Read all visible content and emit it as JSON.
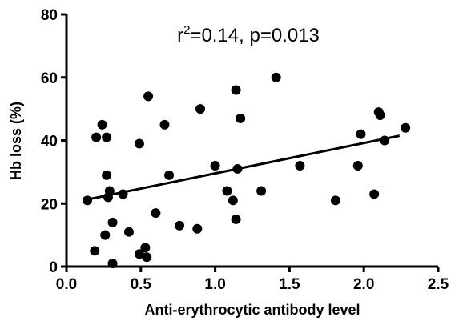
{
  "chart_data": {
    "type": "scatter",
    "annotation": {
      "base": "r",
      "sup": "2",
      "rest": "=0.14, p=0.013"
    },
    "x_label": "Anti-erythrocytic antibody level",
    "y_label": "Hb loss (%)",
    "color": "#000000",
    "xlim": [
      0,
      2.5
    ],
    "ylim": [
      0,
      80
    ],
    "xticks": [
      {
        "value": 0,
        "label": "0.0"
      },
      {
        "value": 0.5,
        "label": "0.5"
      },
      {
        "value": 1,
        "label": "1.0"
      },
      {
        "value": 1.5,
        "label": "1.5"
      },
      {
        "value": 2,
        "label": "2.0"
      },
      {
        "value": 2.5,
        "label": "2.5"
      }
    ],
    "yticks": [
      0,
      20,
      40,
      60,
      80
    ],
    "x": [
      0.14,
      0.2,
      0.24,
      0.27,
      0.19,
      0.26,
      0.27,
      0.29,
      0.28,
      0.31,
      0.31,
      0.38,
      0.42,
      0.49,
      0.49,
      0.53,
      0.54,
      0.55,
      0.6,
      0.66,
      0.69,
      0.76,
      0.88,
      0.9,
      1.0,
      1.08,
      1.12,
      1.14,
      1.14,
      1.15,
      1.17,
      1.31,
      1.41,
      1.57,
      1.81,
      1.96,
      1.98,
      2.07,
      2.1,
      2.11,
      2.14,
      2.28
    ],
    "values": [
      21,
      41,
      45,
      41,
      5,
      10,
      29,
      24,
      22,
      14,
      1,
      23,
      11,
      39,
      4,
      6,
      3,
      54,
      17,
      45,
      29,
      13,
      12,
      50,
      32,
      24,
      21,
      15,
      56,
      31,
      47,
      24,
      60,
      32,
      21,
      32,
      42,
      23,
      49,
      48,
      40,
      44
    ],
    "fit_line": {
      "x": [
        0.11,
        2.24
      ],
      "y": [
        21,
        41.5
      ]
    }
  }
}
